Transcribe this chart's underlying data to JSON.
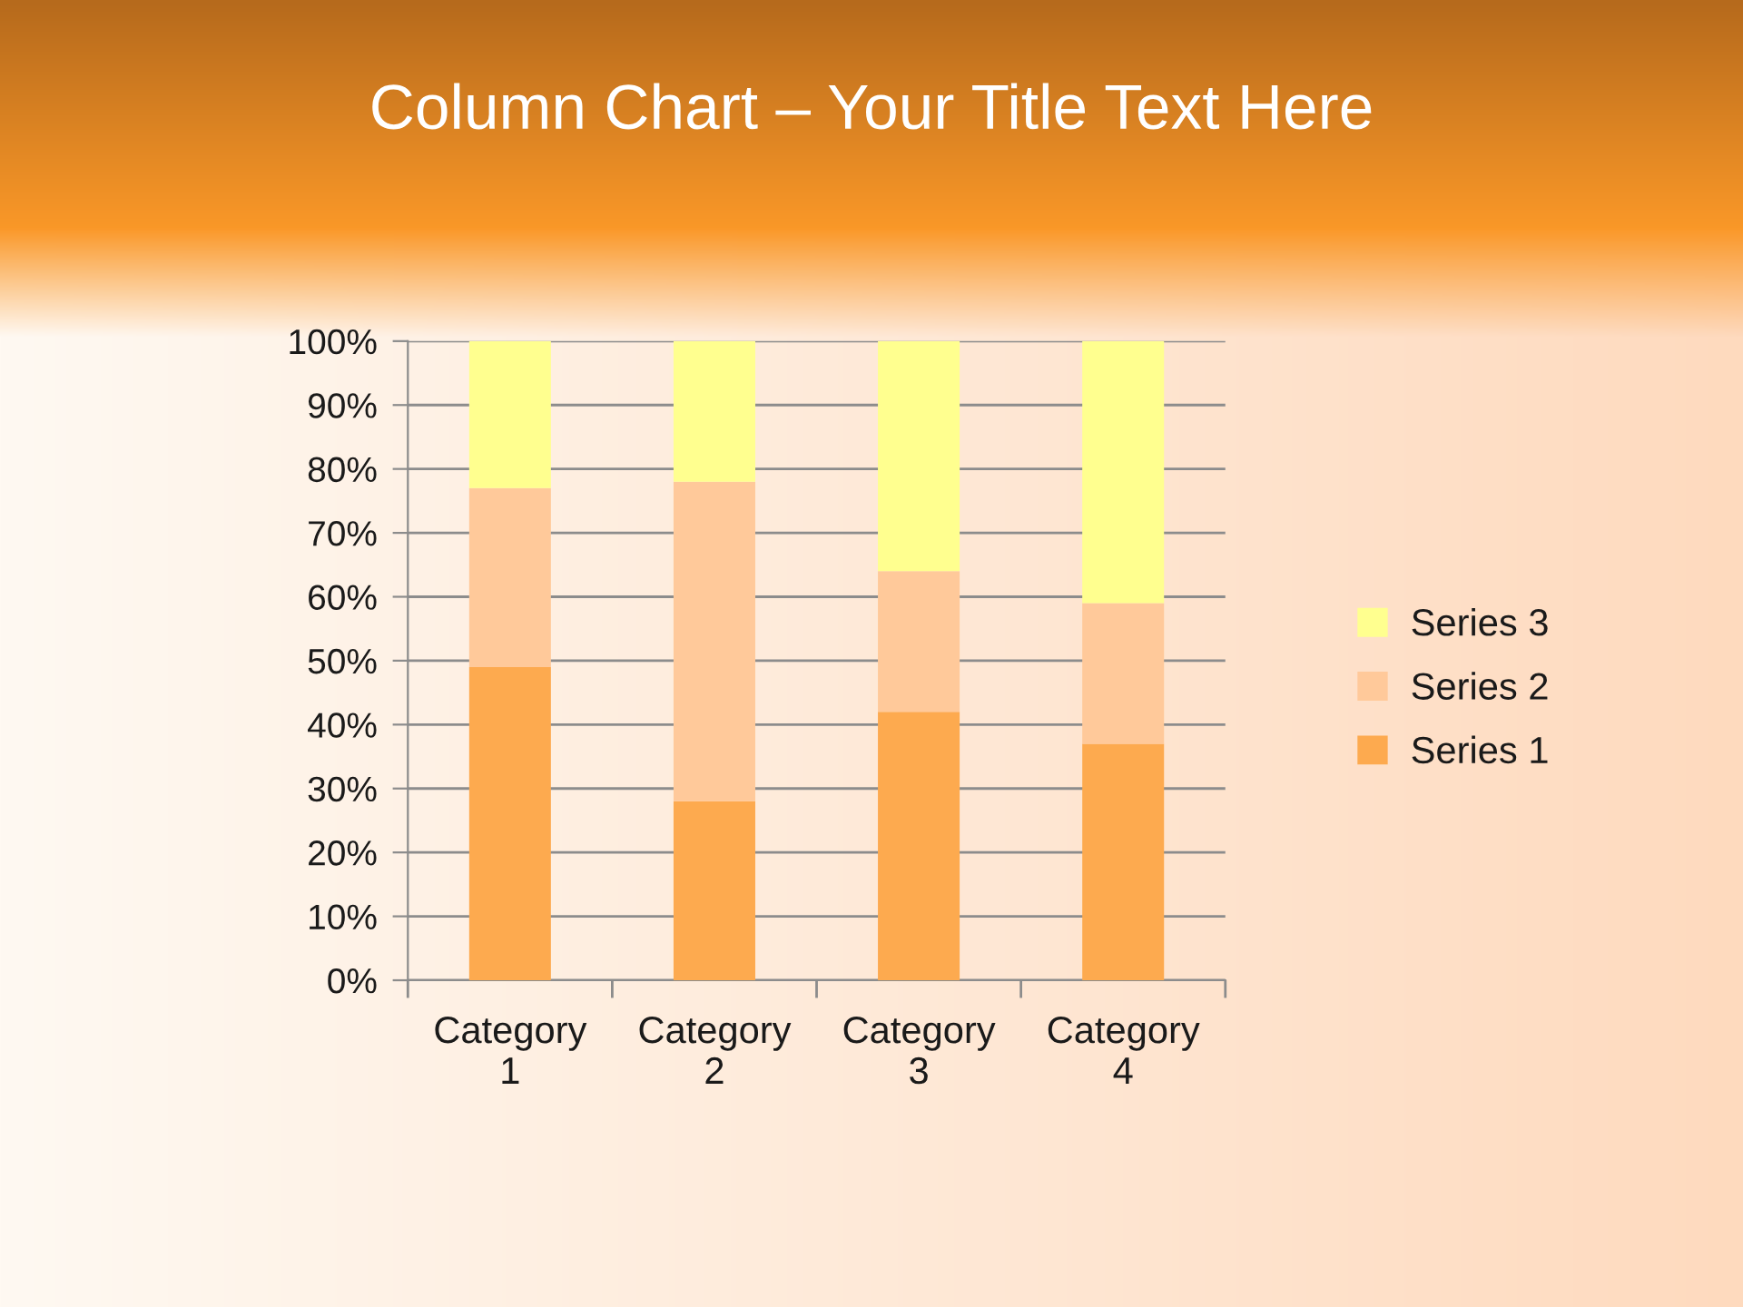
{
  "chart_data": {
    "type": "bar",
    "title": "Column Chart – Your Title Text Here",
    "categories": [
      "Category 1",
      "Category 2",
      "Category 3",
      "Category 4"
    ],
    "stacked": true,
    "series": [
      {
        "name": "Series 1",
        "color": "#fdaa4f",
        "values": [
          49,
          28,
          42,
          37
        ]
      },
      {
        "name": "Series 2",
        "color": "#ffc99a",
        "values": [
          28,
          50,
          22,
          22
        ]
      },
      {
        "name": "Series 3",
        "color": "#ffff8f",
        "values": [
          23,
          22,
          36,
          41
        ]
      }
    ],
    "ylim": [
      0,
      100
    ],
    "yticks": [
      {
        "value": 0,
        "label": "0%"
      },
      {
        "value": 10,
        "label": "10%"
      },
      {
        "value": 20,
        "label": "20%"
      },
      {
        "value": 30,
        "label": "30%"
      },
      {
        "value": 40,
        "label": "40%"
      },
      {
        "value": 50,
        "label": "50%"
      },
      {
        "value": 60,
        "label": "60%"
      },
      {
        "value": 70,
        "label": "70%"
      },
      {
        "value": 80,
        "label": "80%"
      },
      {
        "value": 90,
        "label": "90%"
      },
      {
        "value": 100,
        "label": "100%"
      }
    ],
    "grid": "y",
    "legend": "right"
  }
}
